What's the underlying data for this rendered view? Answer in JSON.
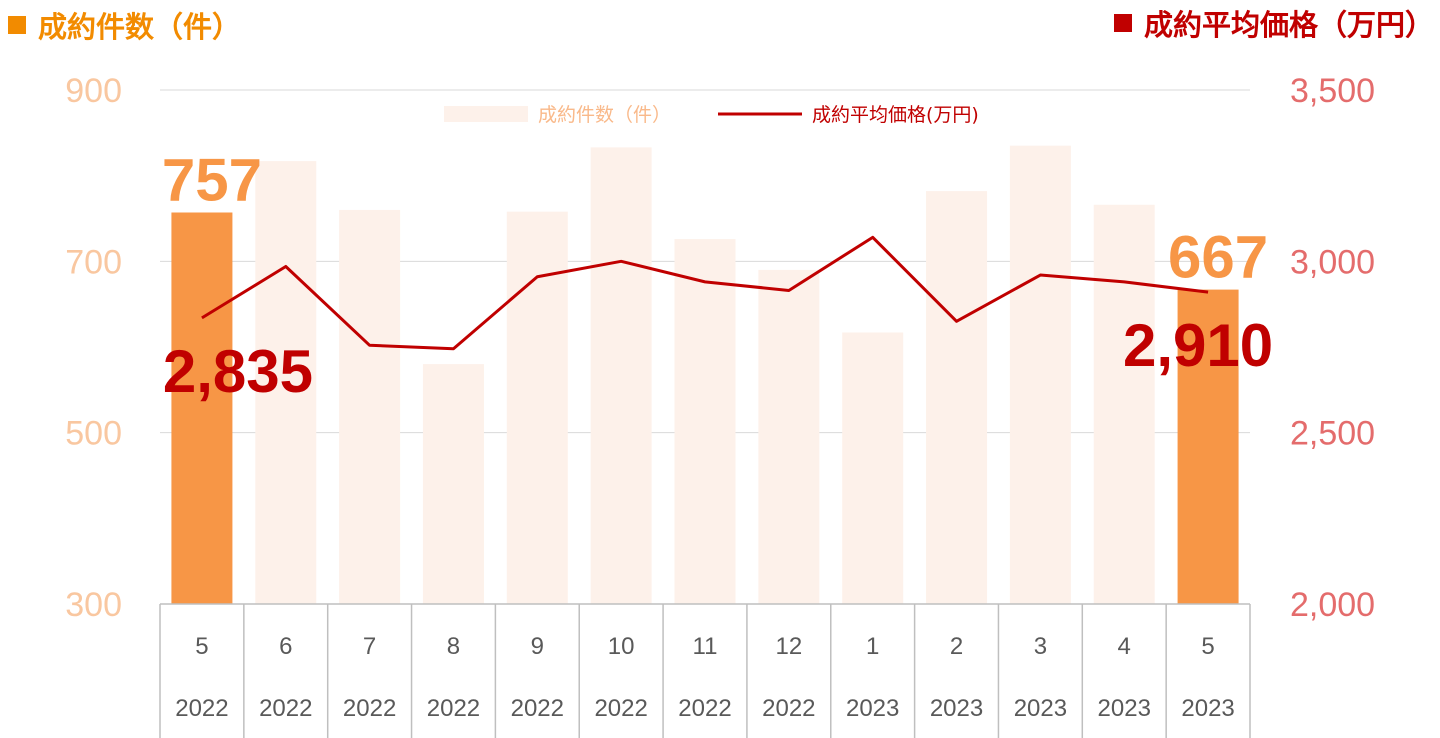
{
  "header": {
    "left_title": "成約件数（件）",
    "right_title": "成約平均価格（万円）"
  },
  "legend": {
    "bar_label": "成約件数（件）",
    "line_label": "成約平均価格(万円)"
  },
  "colors": {
    "bar_highlight": "#F79646",
    "bar_faded": "#FDF1EA",
    "line": "#C00000",
    "left_axis_text": "#F9C7A0",
    "right_axis_text": "#E46C6C",
    "title_left": "#F28B00",
    "title_right": "#C00000",
    "grid": "#D9D9D9"
  },
  "chart_data": {
    "type": "bar",
    "categories": [
      "5",
      "6",
      "7",
      "8",
      "9",
      "10",
      "11",
      "12",
      "1",
      "2",
      "3",
      "4",
      "5"
    ],
    "years": [
      "2022",
      "2022",
      "2022",
      "2022",
      "2022",
      "2022",
      "2022",
      "2022",
      "2023",
      "2023",
      "2023",
      "2023",
      "2023"
    ],
    "left_axis": {
      "ticks": [
        "900",
        "700",
        "500",
        "300"
      ],
      "ylim": [
        300,
        900
      ]
    },
    "right_axis": {
      "ticks": [
        "3,500",
        "3,000",
        "2,500",
        "2,000"
      ],
      "ylim": [
        2000,
        3500
      ]
    },
    "series": [
      {
        "name": "成約件数（件）",
        "type": "bar",
        "axis": "left",
        "values": [
          757,
          817,
          760,
          580,
          758,
          833,
          726,
          690,
          617,
          782,
          835,
          766,
          667
        ],
        "highlight": [
          true,
          false,
          false,
          false,
          false,
          false,
          false,
          false,
          false,
          false,
          false,
          false,
          true
        ]
      },
      {
        "name": "成約平均価格(万円)",
        "type": "line",
        "axis": "right",
        "values": [
          2835,
          2985,
          2755,
          2745,
          2955,
          3000,
          2940,
          2915,
          3070,
          2825,
          2960,
          2940,
          2910
        ]
      }
    ],
    "data_labels": [
      {
        "text": "757",
        "series": 0,
        "index": 0
      },
      {
        "text": "667",
        "series": 0,
        "index": 12
      },
      {
        "text": "2,835",
        "series": 1,
        "index": 0
      },
      {
        "text": "2,910",
        "series": 1,
        "index": 12
      }
    ]
  }
}
